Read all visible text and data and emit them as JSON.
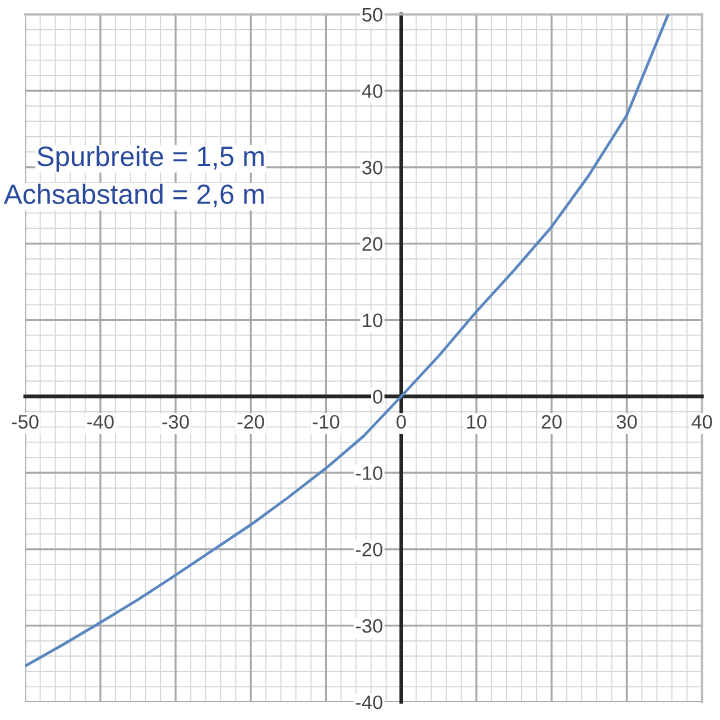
{
  "chart_data": {
    "type": "line",
    "x": [
      -50,
      -45,
      -40,
      -35,
      -30,
      -25,
      -20,
      -15,
      -10,
      -5,
      0,
      5,
      10,
      15,
      20,
      25,
      30,
      35.5
    ],
    "series": [
      {
        "color": "#5b87c0",
        "values": [
          -35.3,
          -32.5,
          -29.6,
          -26.6,
          -23.4,
          -20.1,
          -16.8,
          -13.2,
          -9.4,
          -5.2,
          0,
          5.3,
          11.1,
          16.5,
          22.2,
          29,
          36.8,
          50
        ]
      }
    ],
    "xlim": [
      -50,
      40
    ],
    "ylim": [
      -40,
      50
    ],
    "xticks": [
      -50,
      -40,
      -30,
      -20,
      -10,
      0,
      10,
      20,
      30,
      40
    ],
    "yticks": [
      -40,
      -30,
      -20,
      -10,
      0,
      10,
      20,
      30,
      40,
      50
    ],
    "grid": true,
    "marker": "none",
    "line_style": "solid",
    "annotations": [
      "Spurbreite = 1,5 m",
      "Achsabstand = 2,6 m"
    ]
  }
}
